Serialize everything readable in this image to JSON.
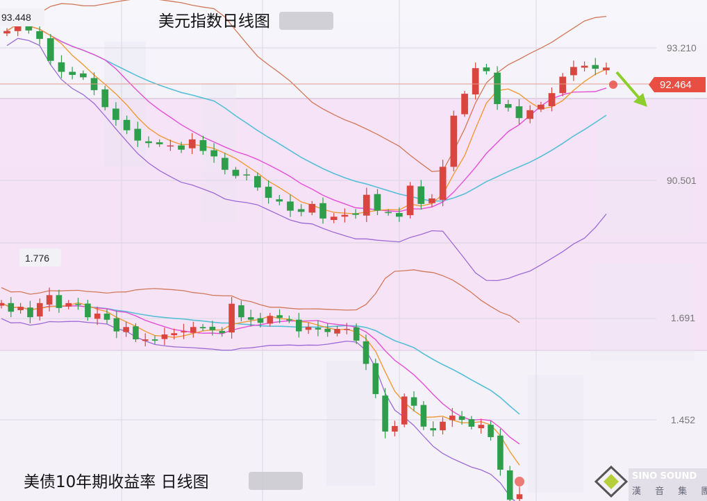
{
  "panel_top": {
    "title": "美元指数日线图",
    "tick_top": "93.448",
    "tick_upper": "93.210",
    "tick_lower": "90.501",
    "last_price": "92.464"
  },
  "panel_bottom": {
    "title": "美债10年期收益率  日线图",
    "tick_top": "1.776",
    "tick_upper": "1.691",
    "tick_lower": "1.452"
  },
  "logo": {
    "name": "SINO SOUND",
    "sub": "漢 音 集 團"
  },
  "colors": {
    "up": "#d9453f",
    "down": "#2e9e4a",
    "boll_upper": "#d2785a",
    "boll_mid": "#55bfd6",
    "boll_lower": "#9b6ad6",
    "ma_fast": "#f19a35",
    "ma_slow": "#e54fd6",
    "arrow": "#8ccf2c"
  },
  "chart_data": [
    {
      "type": "candlestick",
      "title": "美元指数日线图",
      "ylabels": [
        "93.448",
        "93.210",
        "90.501"
      ],
      "last_value": 92.464,
      "ylim": [
        89.58,
        93.57
      ],
      "series": [
        {
          "name": "",
          "values": [
            93.06,
            93.3,
            93.07,
            92.93,
            92.57,
            92.39,
            92.34,
            92.3,
            92.09,
            91.81,
            91.6,
            91.43,
            91.26,
            91.22,
            91.2,
            91.18,
            91.11,
            91.28,
            91.09,
            91.0,
            90.78,
            90.68,
            90.69,
            90.49,
            90.32,
            90.26,
            90.11,
            90.09,
            90.22,
            89.98,
            90.01,
            90.04,
            90.04,
            90.37,
            90.11,
            90.07,
            90.01,
            90.52,
            90.22,
            90.31,
            90.83,
            91.67,
            92.03,
            92.45,
            92.4,
            91.86,
            91.8,
            91.63,
            91.76,
            91.85,
            92.04,
            92.31,
            92.47,
            92.49,
            92.44,
            92.46
          ]
        }
      ]
    },
    {
      "type": "candlestick",
      "title": "美债10年期收益率  日线图",
      "ylabels": [
        "1.776",
        "1.691",
        "1.452"
      ],
      "ylim": [
        1.37,
        1.79
      ],
      "series": [
        {
          "name": "",
          "values": [
            1.692,
            1.678,
            1.686,
            1.669,
            1.692,
            1.705,
            1.684,
            1.692,
            1.69,
            1.669,
            1.675,
            1.665,
            1.646,
            1.653,
            1.633,
            1.633,
            1.631,
            1.641,
            1.643,
            1.646,
            1.653,
            1.651,
            1.648,
            1.643,
            1.691,
            1.669,
            1.665,
            1.66,
            1.671,
            1.668,
            1.665,
            1.646,
            1.653,
            1.649,
            1.645,
            1.65,
            1.65,
            1.631,
            1.593,
            1.544,
            1.483,
            1.492,
            1.54,
            1.525,
            1.491,
            1.485,
            1.499,
            1.509,
            1.502,
            1.491,
            1.494,
            1.474,
            1.421,
            1.372,
            1.381
          ]
        }
      ]
    }
  ]
}
